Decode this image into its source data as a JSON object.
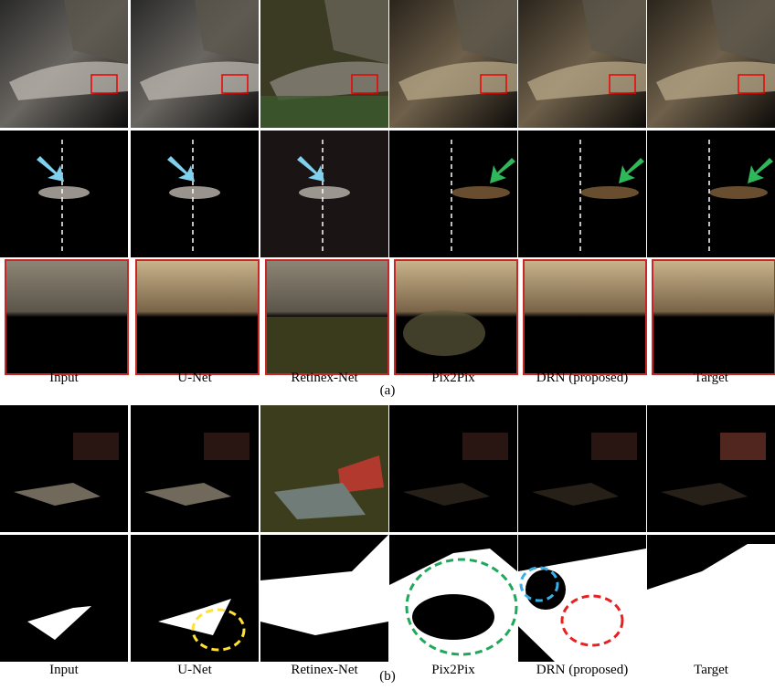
{
  "panels": [
    {
      "label": "(a)",
      "columns": [
        "Input",
        "U-Net",
        "Retinex-Net",
        "Pix2Pix",
        "DRN (proposed)",
        "Target"
      ]
    },
    {
      "label": "(b)",
      "columns": [
        "Input",
        "U-Net",
        "Retinex-Net",
        "Pix2Pix",
        "DRN (proposed)",
        "Target"
      ]
    }
  ]
}
